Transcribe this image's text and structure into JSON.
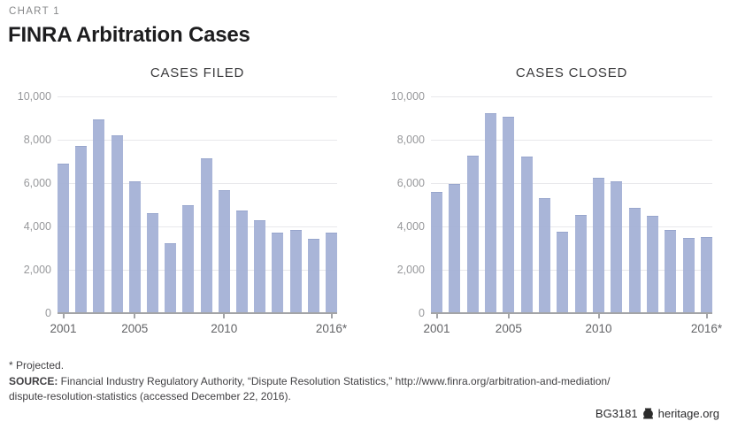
{
  "header": {
    "kicker": "CHART 1",
    "title": "FINRA Arbitration Cases"
  },
  "chart_data": [
    {
      "type": "bar",
      "title": "CASES FILED",
      "categories": [
        "2001",
        "2002",
        "2003",
        "2004",
        "2005",
        "2006",
        "2007",
        "2008",
        "2009",
        "2010",
        "2011",
        "2012",
        "2013",
        "2014",
        "2015",
        "2016*"
      ],
      "values": [
        6915,
        7704,
        8945,
        8201,
        6074,
        4614,
        3238,
        4982,
        7137,
        5680,
        4729,
        4299,
        3714,
        3822,
        3435,
        3700
      ],
      "xlabel": "",
      "ylabel": "",
      "ylim": [
        0,
        10000
      ],
      "yticks": [
        0,
        2000,
        4000,
        6000,
        8000,
        10000
      ],
      "ytick_labels": [
        "0",
        "2,000",
        "4,000",
        "6,000",
        "8,000",
        "10,000"
      ],
      "xticks": [
        {
          "index": 0,
          "label": "2001"
        },
        {
          "index": 4,
          "label": "2005"
        },
        {
          "index": 9,
          "label": "2010"
        },
        {
          "index": 15,
          "label": "2016*"
        }
      ],
      "grid": true,
      "legend": "none"
    },
    {
      "type": "bar",
      "title": "CASES CLOSED",
      "categories": [
        "2001",
        "2002",
        "2003",
        "2004",
        "2005",
        "2006",
        "2007",
        "2008",
        "2009",
        "2010",
        "2011",
        "2012",
        "2013",
        "2014",
        "2015",
        "2016*"
      ],
      "values": [
        5583,
        5957,
        7278,
        9209,
        9043,
        7221,
        5324,
        3740,
        4539,
        6241,
        6084,
        4877,
        4499,
        3820,
        3460,
        3520
      ],
      "xlabel": "",
      "ylabel": "",
      "ylim": [
        0,
        10000
      ],
      "yticks": [
        0,
        2000,
        4000,
        6000,
        8000,
        10000
      ],
      "ytick_labels": [
        "0",
        "2,000",
        "4,000",
        "6,000",
        "8,000",
        "10,000"
      ],
      "xticks": [
        {
          "index": 0,
          "label": "2001"
        },
        {
          "index": 4,
          "label": "2005"
        },
        {
          "index": 9,
          "label": "2010"
        },
        {
          "index": 15,
          "label": "2016*"
        }
      ],
      "grid": true,
      "legend": "none"
    }
  ],
  "footnote": "* Projected.",
  "source": {
    "label": "SOURCE:",
    "line1": " Financial Industry Regulatory Authority, “Dispute Resolution Statistics,” http://www.finra.org/arbitration-and-mediation/",
    "line2": "dispute-resolution-statistics (accessed December 22, 2016)."
  },
  "footer": {
    "doc_id": "BG3181",
    "site": "heritage.org",
    "logo_icon": "heritage-bell-icon"
  },
  "colors": {
    "bar": "#a5b2d6",
    "bar_edge": "#93a2cb",
    "gridline": "#e8e8eb",
    "baseline": "#a3a4a7",
    "y_axis_text": "#97989b",
    "x_axis_text": "#626366",
    "kicker_text": "#87888a",
    "title_text": "#1d1d1f"
  }
}
